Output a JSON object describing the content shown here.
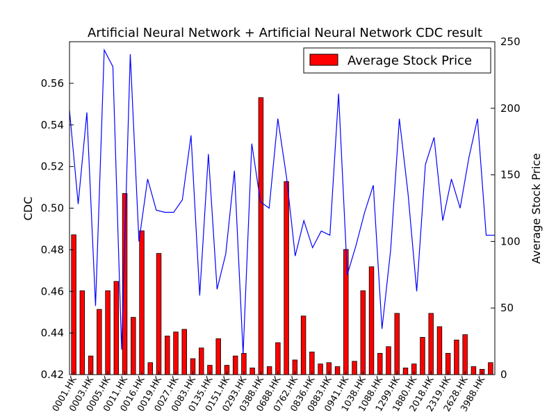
{
  "chart_data": {
    "type": "bar",
    "title": "Artificial Neural Network + Artificial Neural Network CDC result",
    "ylabel_left": "CDC",
    "ylabel_right": "Average Stock Price",
    "legend": {
      "label": "Average Stock Price",
      "placement": "top-right"
    },
    "colors": {
      "bars": "#ff0000",
      "bar_edge": "#000000",
      "line": "#0000ff"
    },
    "left_axis": {
      "ylim": [
        0.42,
        0.58
      ],
      "ticks": [
        "0.42",
        "0.44",
        "0.46",
        "0.48",
        "0.50",
        "0.52",
        "0.54",
        "0.56"
      ]
    },
    "right_axis": {
      "ylim": [
        0,
        250
      ],
      "ticks": [
        "0",
        "50",
        "100",
        "150",
        "200",
        "250"
      ]
    },
    "x_tick_labels": [
      "0001.HK",
      "0003.HK",
      "0005.HK",
      "0011.HK",
      "0016.HK",
      "0019.HK",
      "0027.HK",
      "0083.HK",
      "0135.HK",
      "0151.HK",
      "0293.HK",
      "0388.HK",
      "0688.HK",
      "0762.HK",
      "0836.HK",
      "0883.HK",
      "0941.HK",
      "1038.HK",
      "1088.HK",
      "1299.HK",
      "1880.HK",
      "2018.HK",
      "2319.HK",
      "2628.HK",
      "3988.HK"
    ],
    "series": [
      {
        "name": "Average Stock Price",
        "kind": "bar",
        "axis": "right",
        "values": [
          105,
          63,
          14,
          49,
          63,
          70,
          136,
          43,
          108,
          9,
          91,
          29,
          32,
          34,
          12,
          20,
          7,
          27,
          7,
          14,
          16,
          5,
          208,
          6,
          24,
          145,
          11,
          44,
          17,
          8,
          9,
          6,
          94,
          10,
          63,
          81,
          16,
          21,
          46,
          5,
          8,
          28,
          46,
          36,
          16,
          26,
          30,
          6,
          4,
          9
        ]
      },
      {
        "kind": "line",
        "axis": "left",
        "values": [
          0.547,
          0.502,
          0.546,
          0.453,
          0.576,
          0.568,
          0.432,
          0.574,
          0.484,
          0.514,
          0.499,
          0.498,
          0.498,
          0.504,
          0.535,
          0.458,
          0.526,
          0.461,
          0.478,
          0.518,
          0.43,
          0.531,
          0.503,
          0.5,
          0.543,
          0.515,
          0.477,
          0.494,
          0.481,
          0.489,
          0.487,
          0.555,
          0.468,
          0.482,
          0.498,
          0.511,
          0.442,
          0.48,
          0.543,
          0.507,
          0.46,
          0.521,
          0.534,
          0.494,
          0.514,
          0.5,
          0.524,
          0.543,
          0.487,
          0.487
        ]
      }
    ]
  }
}
